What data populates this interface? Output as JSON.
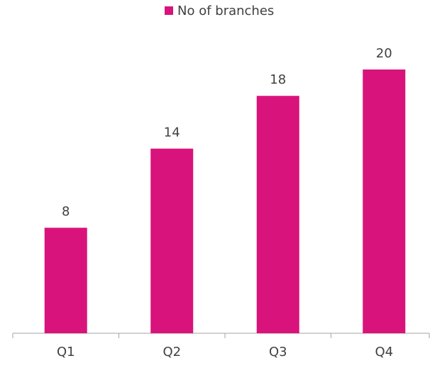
{
  "chart_data": {
    "type": "bar",
    "legend": "No of branches",
    "categories": [
      "Q1",
      "Q2",
      "Q3",
      "Q4"
    ],
    "values": [
      8,
      14,
      18,
      20
    ],
    "color": "#d9137c",
    "legend_position": "top"
  }
}
